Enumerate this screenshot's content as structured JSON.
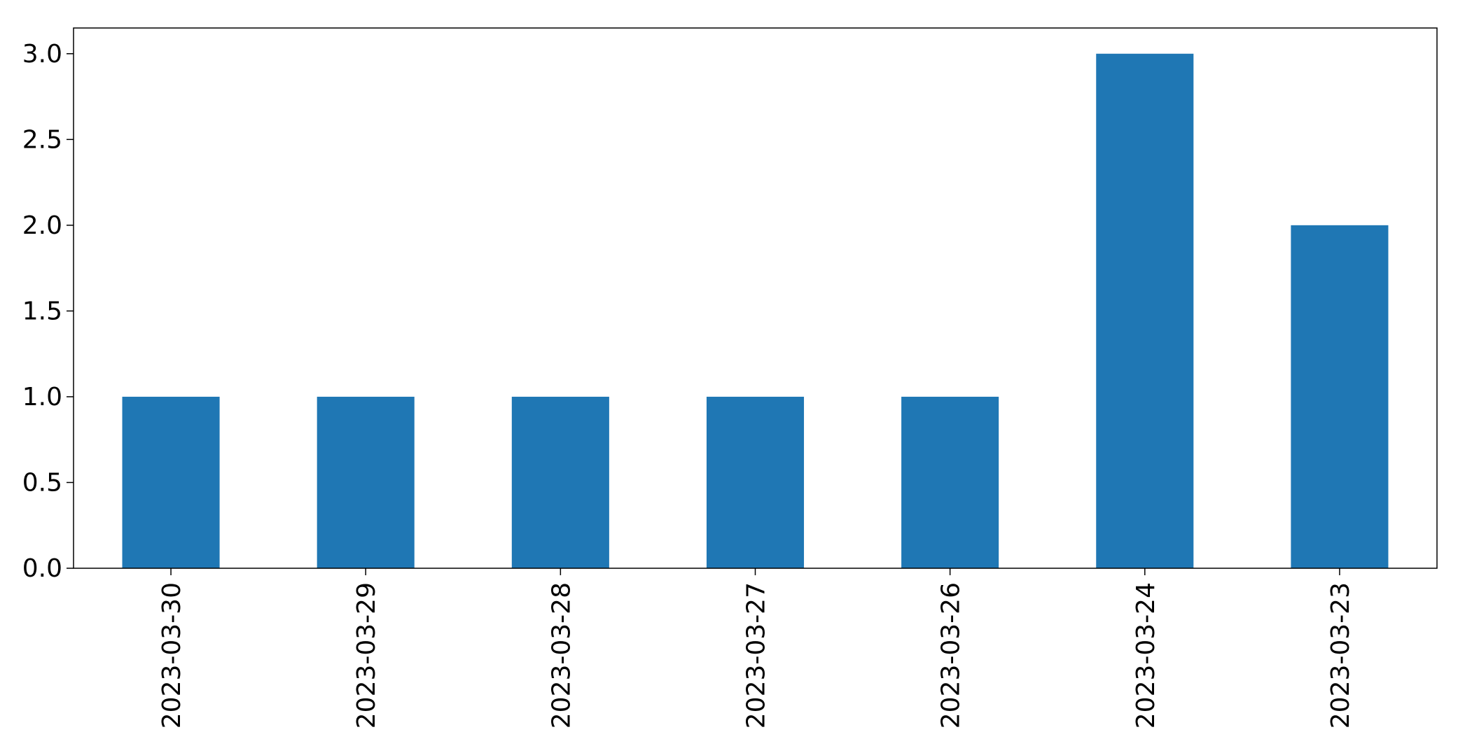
{
  "chart_data": {
    "type": "bar",
    "categories": [
      "2023-03-30",
      "2023-03-29",
      "2023-03-28",
      "2023-03-27",
      "2023-03-26",
      "2023-03-24",
      "2023-03-23"
    ],
    "values": [
      1,
      1,
      1,
      1,
      1,
      3,
      2
    ],
    "title": "",
    "xlabel": "",
    "ylabel": "",
    "ylim": [
      0,
      3.15
    ],
    "yticks": [
      "0.0",
      "0.5",
      "1.0",
      "1.5",
      "2.0",
      "2.5",
      "3.0"
    ],
    "grid": false,
    "legend": "none",
    "bar_color": "#1f77b4"
  }
}
